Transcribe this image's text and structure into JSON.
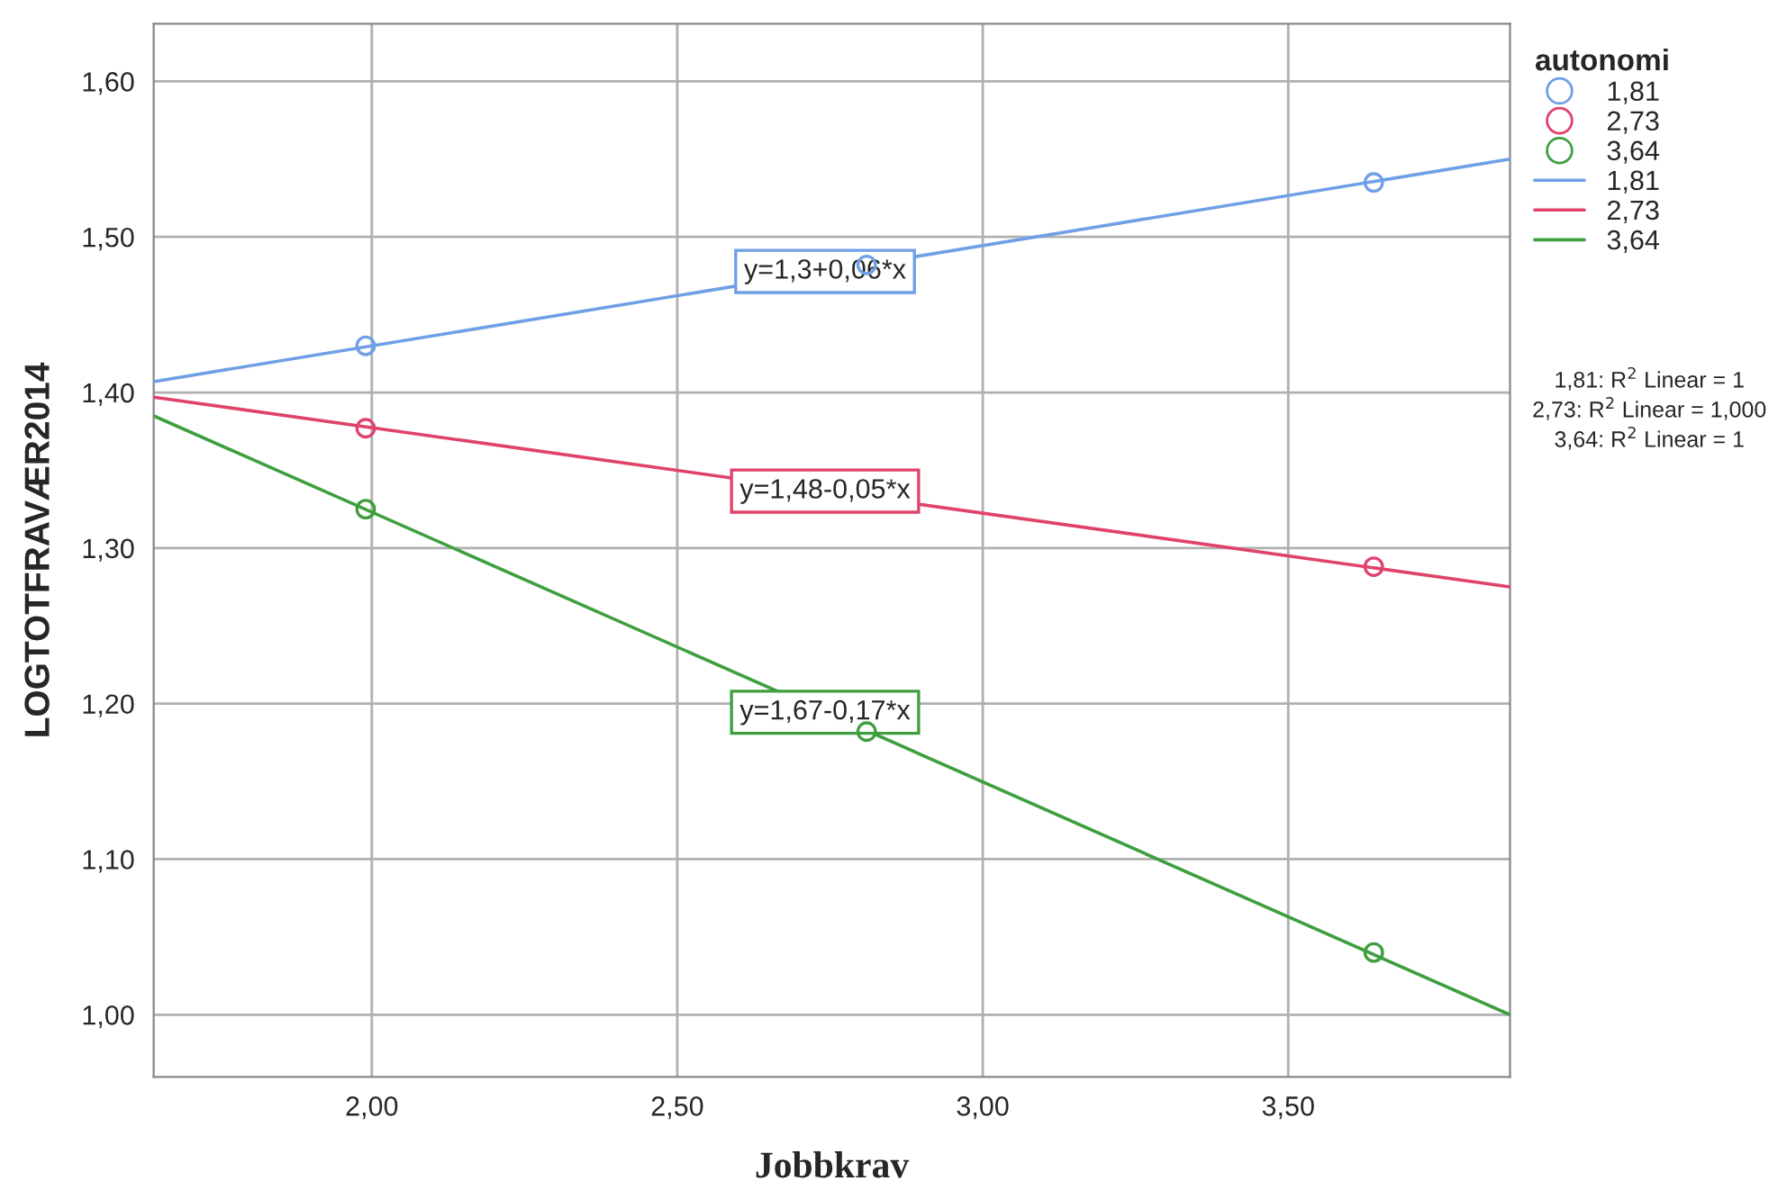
{
  "chart_data": {
    "type": "scatter",
    "xlabel": "Jobbkrav",
    "ylabel": "LOGTOTFRAVÆR2014",
    "legend_title": "autonomi",
    "legend": "right",
    "grid": true,
    "xlim": [
      1.643,
      3.863
    ],
    "ylim": [
      0.96,
      1.637
    ],
    "xticks": [
      {
        "value": 2.0,
        "label": "2,00"
      },
      {
        "value": 2.5,
        "label": "2,50"
      },
      {
        "value": 3.0,
        "label": "3,00"
      },
      {
        "value": 3.5,
        "label": "3,50"
      }
    ],
    "yticks": [
      {
        "value": 1.0,
        "label": "1,00"
      },
      {
        "value": 1.1,
        "label": "1,10"
      },
      {
        "value": 1.2,
        "label": "1,20"
      },
      {
        "value": 1.3,
        "label": "1,30"
      },
      {
        "value": 1.4,
        "label": "1,40"
      },
      {
        "value": 1.5,
        "label": "1,50"
      },
      {
        "value": 1.6,
        "label": "1,60"
      }
    ],
    "series": [
      {
        "name": "1,81",
        "marker": "circle",
        "color": "#6f9fe6",
        "x": [
          1.99,
          2.81,
          3.64
        ],
        "values": [
          1.43,
          1.482,
          1.535
        ]
      },
      {
        "name": "2,73",
        "marker": "circle",
        "color": "#e0426a",
        "x": [
          1.99,
          2.81,
          3.64
        ],
        "values": [
          1.377,
          null,
          1.288
        ]
      },
      {
        "name": "3,64",
        "marker": "circle",
        "color": "#3f9f3f",
        "x": [
          1.99,
          2.81,
          3.64
        ],
        "values": [
          1.325,
          1.182,
          1.04
        ]
      },
      {
        "name": "1,81",
        "type": "line",
        "marker": "none",
        "color": "#6f9fe6",
        "x": [
          1.643,
          3.863
        ],
        "values": [
          1.407,
          1.55
        ]
      },
      {
        "name": "2,73",
        "type": "line",
        "marker": "none",
        "color": "#e0426a",
        "x": [
          1.643,
          3.863
        ],
        "values": [
          1.397,
          1.275
        ]
      },
      {
        "name": "3,64",
        "type": "line",
        "marker": "none",
        "color": "#3f9f3f",
        "x": [
          1.643,
          3.863
        ],
        "values": [
          1.385,
          1.0
        ]
      }
    ],
    "annotations": [
      "y=1,3+0,06*x",
      "y=1,48-0,05*x",
      "y=1,67-0,17*x",
      "1,81: R$^{2}$ Linear = 1",
      "2,73: R$^{2}$ Linear = 1,000",
      "3,64: R$^{2}$ Linear = 1"
    ]
  }
}
